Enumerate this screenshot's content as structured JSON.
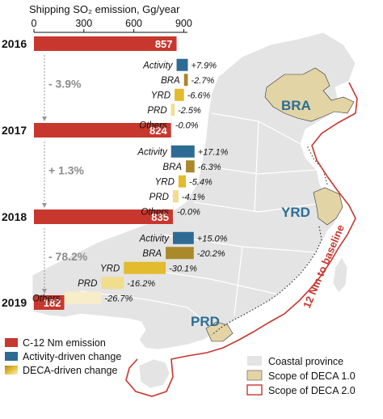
{
  "chart_data": {
    "type": "bar",
    "title": "",
    "xlabel": "Shipping SO₂ emission, Gg/year",
    "xlim": [
      0,
      1000
    ],
    "x_ticks": [
      0,
      300,
      600,
      900
    ],
    "years": [
      {
        "year": "2016",
        "value": 857,
        "label": "857"
      },
      {
        "year": "2017",
        "value": 824,
        "label": "824"
      },
      {
        "year": "2018",
        "value": 835,
        "label": "835"
      },
      {
        "year": "2019",
        "value": 182,
        "label": "182"
      }
    ],
    "transitions": [
      {
        "change_label": "- 3.9%",
        "items": [
          {
            "name": "Activity",
            "pct": 7.9,
            "label": "+7.9%"
          },
          {
            "name": "BRA",
            "pct": -2.7,
            "label": "-2.7%"
          },
          {
            "name": "YRD",
            "pct": -6.6,
            "label": "-6.6%"
          },
          {
            "name": "PRD",
            "pct": -2.5,
            "label": "-2.5%"
          },
          {
            "name": "Others",
            "pct": 0.0,
            "label": "-0.0%"
          }
        ]
      },
      {
        "change_label": "+ 1.3%",
        "items": [
          {
            "name": "Activity",
            "pct": 17.1,
            "label": "+17.1%"
          },
          {
            "name": "BRA",
            "pct": -6.3,
            "label": "-6.3%"
          },
          {
            "name": "YRD",
            "pct": -5.4,
            "label": "-5.4%"
          },
          {
            "name": "PRD",
            "pct": -4.1,
            "label": "-4.1%"
          },
          {
            "name": "Others",
            "pct": 0.0,
            "label": "-0.0%"
          }
        ]
      },
      {
        "change_label": "- 78.2%",
        "items": [
          {
            "name": "Activity",
            "pct": 15.0,
            "label": "+15.0%"
          },
          {
            "name": "BRA",
            "pct": -20.2,
            "label": "-20.2%"
          },
          {
            "name": "YRD",
            "pct": -30.1,
            "label": "-30.1%"
          },
          {
            "name": "PRD",
            "pct": -16.2,
            "label": "-16.2%"
          },
          {
            "name": "Others",
            "pct": -26.7,
            "label": "-26.7%"
          }
        ]
      }
    ],
    "colors": {
      "emission": "#c8372d",
      "activity": "#2e6b94",
      "BRA": "#a9892a",
      "YRD": "#e2bb2e",
      "PRD": "#f0dd8e",
      "Others": "#f7edc9"
    }
  },
  "map": {
    "region_labels": {
      "bra": "BRA",
      "yrd": "YRD",
      "prd": "PRD"
    },
    "boundary_label": "12 Nm to baseline",
    "colors": {
      "province": "#e4e4e4",
      "deca1": "#e3d4a5",
      "boundary": "#c8372d",
      "region_text": "#2b6e96"
    }
  },
  "legend_left": [
    {
      "label": "C-12 Nm emission",
      "kind": "emission"
    },
    {
      "label": "Activity-driven change",
      "kind": "activity"
    },
    {
      "label": "DECA-driven change",
      "kind": "deca"
    }
  ],
  "legend_right": [
    {
      "label": "Coastal province",
      "kind": "province"
    },
    {
      "label": "Scope of DECA 1.0",
      "kind": "deca1"
    },
    {
      "label": "Scope of DECA 2.0",
      "kind": "deca2"
    }
  ]
}
